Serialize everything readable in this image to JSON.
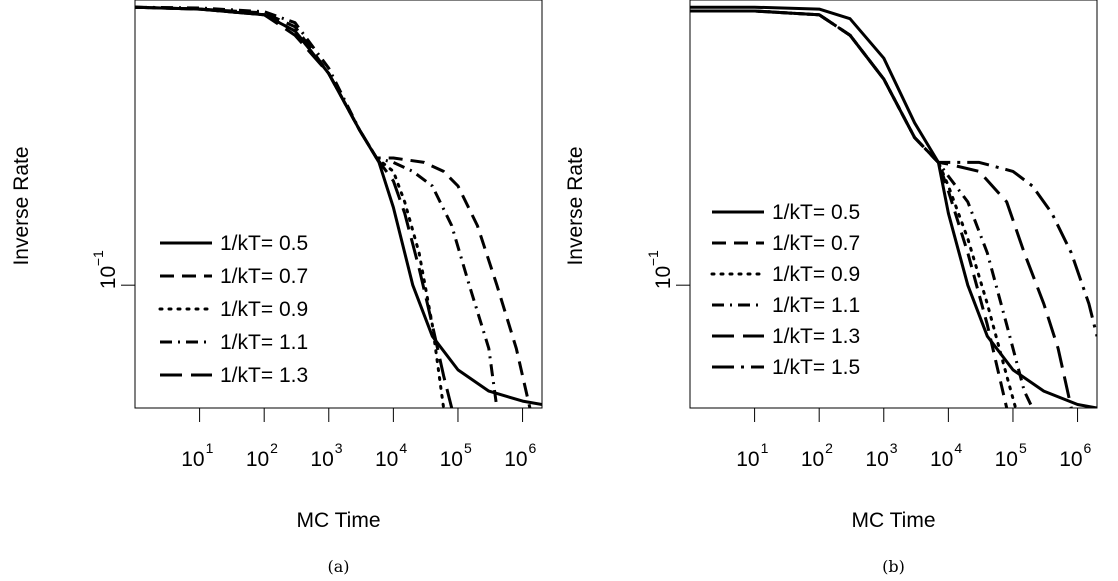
{
  "chart_data": [
    {
      "type": "line",
      "caption": "(a)",
      "xlabel": "MC Time",
      "ylabel": "Inverse Rate",
      "xscale": "log",
      "yscale": "log",
      "xlim": [
        1,
        2000000
      ],
      "ylim": [
        0.05,
        0.5
      ],
      "x_ticks": [
        {
          "base": "10",
          "exp": "1",
          "value": 10
        },
        {
          "base": "10",
          "exp": "2",
          "value": 100
        },
        {
          "base": "10",
          "exp": "3",
          "value": 1000
        },
        {
          "base": "10",
          "exp": "4",
          "value": 10000
        },
        {
          "base": "10",
          "exp": "5",
          "value": 100000
        },
        {
          "base": "10",
          "exp": "6",
          "value": 1000000
        }
      ],
      "y_ticks": [
        {
          "base": "10",
          "exp": "−1",
          "value": 0.1
        }
      ],
      "legend_position": "bottom-left",
      "grid": false,
      "series": [
        {
          "name": "1/kT= 0.5",
          "style": "solid",
          "x": [
            1,
            10,
            100,
            300,
            1000,
            3000,
            6000,
            10000,
            20000,
            40000,
            100000,
            300000,
            1000000,
            2000000
          ],
          "y": [
            0.48,
            0.475,
            0.46,
            0.42,
            0.33,
            0.24,
            0.2,
            0.155,
            0.1,
            0.075,
            0.062,
            0.055,
            0.052,
            0.051
          ]
        },
        {
          "name": "1/kT= 0.7",
          "style": "dashed",
          "x": [
            1,
            10,
            100,
            300,
            1000,
            3000,
            5500,
            10000,
            30000,
            60000,
            100000,
            200000,
            400000,
            800000,
            1300000
          ],
          "y": [
            0.48,
            0.475,
            0.465,
            0.43,
            0.33,
            0.24,
            0.205,
            0.205,
            0.2,
            0.19,
            0.175,
            0.14,
            0.1,
            0.07,
            0.05
          ]
        },
        {
          "name": "1/kT= 0.9",
          "style": "dotted",
          "x": [
            1,
            10,
            100,
            300,
            1000,
            3000,
            5500,
            10000,
            15000,
            25000,
            40000,
            60000
          ],
          "y": [
            0.48,
            0.475,
            0.46,
            0.42,
            0.33,
            0.24,
            0.205,
            0.19,
            0.16,
            0.12,
            0.08,
            0.05
          ]
        },
        {
          "name": "1/kT= 1.1",
          "style": "dash-dot",
          "x": [
            1,
            10,
            100,
            300,
            1000,
            3000,
            5500,
            10000,
            20000,
            40000,
            80000,
            150000,
            300000,
            400000
          ],
          "y": [
            0.48,
            0.478,
            0.468,
            0.44,
            0.34,
            0.24,
            0.205,
            0.2,
            0.19,
            0.175,
            0.14,
            0.1,
            0.07,
            0.05
          ]
        },
        {
          "name": "1/kT= 1.3",
          "style": "long-dash",
          "x": [
            1,
            10,
            100,
            300,
            1000,
            3000,
            5500,
            10000,
            15000,
            25000,
            40000,
            60000,
            80000
          ],
          "y": [
            0.48,
            0.475,
            0.46,
            0.41,
            0.33,
            0.24,
            0.205,
            0.18,
            0.15,
            0.11,
            0.08,
            0.06,
            0.05
          ]
        }
      ]
    },
    {
      "type": "line",
      "caption": "(b)",
      "xlabel": "MC Time",
      "ylabel": "Inverse Rate",
      "xscale": "log",
      "yscale": "log",
      "xlim": [
        1,
        2000000
      ],
      "ylim": [
        0.05,
        0.5
      ],
      "x_ticks": [
        {
          "base": "10",
          "exp": "1",
          "value": 10
        },
        {
          "base": "10",
          "exp": "2",
          "value": 100
        },
        {
          "base": "10",
          "exp": "3",
          "value": 1000
        },
        {
          "base": "10",
          "exp": "4",
          "value": 10000
        },
        {
          "base": "10",
          "exp": "5",
          "value": 100000
        },
        {
          "base": "10",
          "exp": "6",
          "value": 1000000
        }
      ],
      "y_ticks": [
        {
          "base": "10",
          "exp": "−1",
          "value": 0.1
        }
      ],
      "legend_position": "bottom-left",
      "grid": false,
      "series": [
        {
          "name": "1/kT= 0.5",
          "style": "solid",
          "x": [
            1,
            10,
            100,
            300,
            1000,
            3000,
            7000,
            10000,
            20000,
            40000,
            100000,
            300000,
            1000000,
            2000000
          ],
          "y": [
            0.48,
            0.48,
            0.475,
            0.45,
            0.36,
            0.25,
            0.2,
            0.15,
            0.1,
            0.075,
            0.062,
            0.055,
            0.051,
            0.05
          ]
        },
        {
          "name": "1/kT= 0.7",
          "style": "dashed",
          "x": [
            1,
            10,
            100,
            300,
            1000,
            3000,
            7000,
            10000,
            20000,
            40000,
            80000
          ],
          "y": [
            0.47,
            0.47,
            0.46,
            0.41,
            0.32,
            0.23,
            0.2,
            0.17,
            0.12,
            0.08,
            0.05
          ]
        },
        {
          "name": "1/kT= 0.9",
          "style": "dotted",
          "x": [
            1,
            10,
            100,
            300,
            1000,
            3000,
            7000,
            10000,
            20000,
            40000,
            80000,
            110000
          ],
          "y": [
            0.47,
            0.47,
            0.46,
            0.41,
            0.32,
            0.23,
            0.2,
            0.175,
            0.13,
            0.09,
            0.06,
            0.05
          ]
        },
        {
          "name": "1/kT= 1.1",
          "style": "dash-dot",
          "x": [
            1,
            10,
            100,
            300,
            1000,
            3000,
            7000,
            10000,
            20000,
            40000,
            80000,
            150000,
            200000
          ],
          "y": [
            0.47,
            0.47,
            0.46,
            0.41,
            0.32,
            0.23,
            0.2,
            0.185,
            0.16,
            0.12,
            0.08,
            0.055,
            0.05
          ]
        },
        {
          "name": "1/kT= 1.3",
          "style": "long-dash",
          "x": [
            1,
            10,
            100,
            300,
            1000,
            3000,
            7000,
            10000,
            30000,
            80000,
            150000,
            300000,
            500000,
            800000
          ],
          "y": [
            0.47,
            0.47,
            0.46,
            0.41,
            0.32,
            0.23,
            0.2,
            0.198,
            0.19,
            0.16,
            0.12,
            0.09,
            0.07,
            0.05
          ]
        },
        {
          "name": "1/kT= 1.5",
          "style": "long-dash-dot",
          "x": [
            1,
            10,
            100,
            300,
            1000,
            3000,
            7000,
            10000,
            30000,
            100000,
            200000,
            400000,
            800000,
            1500000,
            2000000
          ],
          "y": [
            0.47,
            0.47,
            0.46,
            0.41,
            0.32,
            0.23,
            0.2,
            0.2,
            0.2,
            0.19,
            0.175,
            0.15,
            0.12,
            0.09,
            0.075
          ]
        }
      ]
    }
  ]
}
